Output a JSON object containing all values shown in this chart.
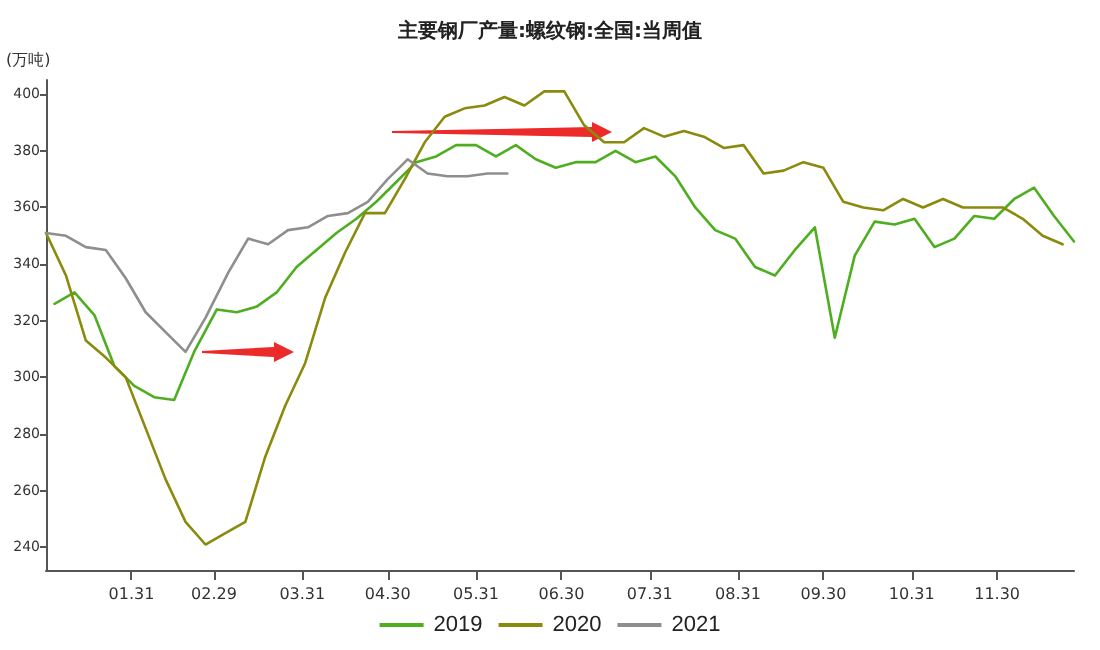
{
  "chart_data": {
    "type": "line",
    "title": "主要钢厂产量:螺纹钢:全国:当周值",
    "ylabel": "(万吨)",
    "xlim": [
      "--01-01",
      "--12-27"
    ],
    "xticks": [
      {
        "value": "--01-31",
        "label": "01.31"
      },
      {
        "value": "--02-29",
        "label": "02.29"
      },
      {
        "value": "--03-31",
        "label": "03.31"
      },
      {
        "value": "--04-30",
        "label": "04.30"
      },
      {
        "value": "--05-31",
        "label": "05.31"
      },
      {
        "value": "--06-30",
        "label": "06.30"
      },
      {
        "value": "--07-31",
        "label": "07.31"
      },
      {
        "value": "--08-31",
        "label": "08.31"
      },
      {
        "value": "--09-30",
        "label": "09.30"
      },
      {
        "value": "--10-31",
        "label": "10.31"
      },
      {
        "value": "--11-30",
        "label": "11.30"
      }
    ],
    "ylim": [
      232,
      405
    ],
    "yticks": [
      240,
      260,
      280,
      300,
      320,
      340,
      360,
      380,
      400
    ],
    "grid": false,
    "legend": "bottom",
    "marker": "none",
    "line_style": "solid",
    "series": [
      {
        "name": "2019",
        "color": "#4fae1f",
        "x": [
          "--01-04",
          "--01-11",
          "--01-18",
          "--01-25",
          "--02-01",
          "--02-08",
          "--02-15",
          "--02-22",
          "--03-01",
          "--03-08",
          "--03-15",
          "--03-22",
          "--03-29",
          "--04-05",
          "--04-12",
          "--04-19",
          "--04-26",
          "--05-03",
          "--05-10",
          "--05-17",
          "--05-24",
          "--05-31",
          "--06-07",
          "--06-14",
          "--06-21",
          "--06-28",
          "--07-05",
          "--07-12",
          "--07-19",
          "--07-26",
          "--08-02",
          "--08-09",
          "--08-16",
          "--08-23",
          "--08-30",
          "--09-06",
          "--09-13",
          "--09-20",
          "--09-27",
          "--10-04",
          "--10-11",
          "--10-18",
          "--10-25",
          "--11-01",
          "--11-08",
          "--11-15",
          "--11-22",
          "--11-29",
          "--12-06",
          "--12-13",
          "--12-20",
          "--12-27"
        ],
        "values": [
          326,
          330,
          322,
          304,
          297,
          293,
          292,
          309,
          324,
          323,
          325,
          330,
          339,
          345,
          351,
          356,
          362,
          369,
          376,
          378,
          382,
          382,
          378,
          382,
          377,
          374,
          376,
          376,
          380,
          376,
          378,
          371,
          360,
          352,
          349,
          339,
          336,
          345,
          353,
          314,
          343,
          355,
          354,
          356,
          346,
          349,
          357,
          356,
          363,
          367,
          357,
          348
        ]
      },
      {
        "name": "2020",
        "color": "#8a8a0c",
        "x": [
          "--01-01",
          "--01-08",
          "--01-15",
          "--01-22",
          "--01-29",
          "--02-05",
          "--02-12",
          "--02-19",
          "--02-26",
          "--03-04",
          "--03-11",
          "--03-18",
          "--03-25",
          "--04-01",
          "--04-08",
          "--04-15",
          "--04-22",
          "--04-29",
          "--05-06",
          "--05-13",
          "--05-20",
          "--05-27",
          "--06-03",
          "--06-10",
          "--06-17",
          "--06-24",
          "--07-01",
          "--07-08",
          "--07-15",
          "--07-22",
          "--07-29",
          "--08-05",
          "--08-12",
          "--08-19",
          "--08-26",
          "--09-02",
          "--09-09",
          "--09-16",
          "--09-23",
          "--09-30",
          "--10-07",
          "--10-14",
          "--10-21",
          "--10-28",
          "--11-04",
          "--11-11",
          "--11-18",
          "--11-25",
          "--12-02",
          "--12-09",
          "--12-16",
          "--12-23"
        ],
        "values": [
          351,
          336,
          313,
          307,
          300,
          282,
          264,
          249,
          241,
          245,
          249,
          272,
          290,
          305,
          328,
          344,
          358,
          358,
          370,
          383,
          392,
          395,
          396,
          399,
          396,
          401,
          401,
          389,
          383,
          383,
          388,
          385,
          387,
          385,
          381,
          382,
          372,
          373,
          376,
          374,
          362,
          360,
          359,
          363,
          360,
          363,
          360,
          360,
          360,
          356,
          350,
          347
        ]
      },
      {
        "name": "2021",
        "color": "#8e8e8e",
        "x": [
          "--01-01",
          "--01-08",
          "--01-15",
          "--01-22",
          "--01-29",
          "--02-05",
          "--02-12",
          "--02-19",
          "--02-26",
          "--03-05",
          "--03-12",
          "--03-19",
          "--03-26",
          "--04-02",
          "--04-09",
          "--04-16",
          "--04-23",
          "--04-30",
          "--05-07",
          "--05-14",
          "--05-21",
          "--05-28",
          "--06-04",
          "--06-11"
        ],
        "values": [
          351,
          350,
          346,
          345,
          335,
          323,
          316,
          309,
          321,
          337,
          349,
          347,
          352,
          353,
          357,
          358,
          362,
          370,
          377,
          372,
          371,
          371,
          372,
          372
        ]
      }
    ]
  }
}
